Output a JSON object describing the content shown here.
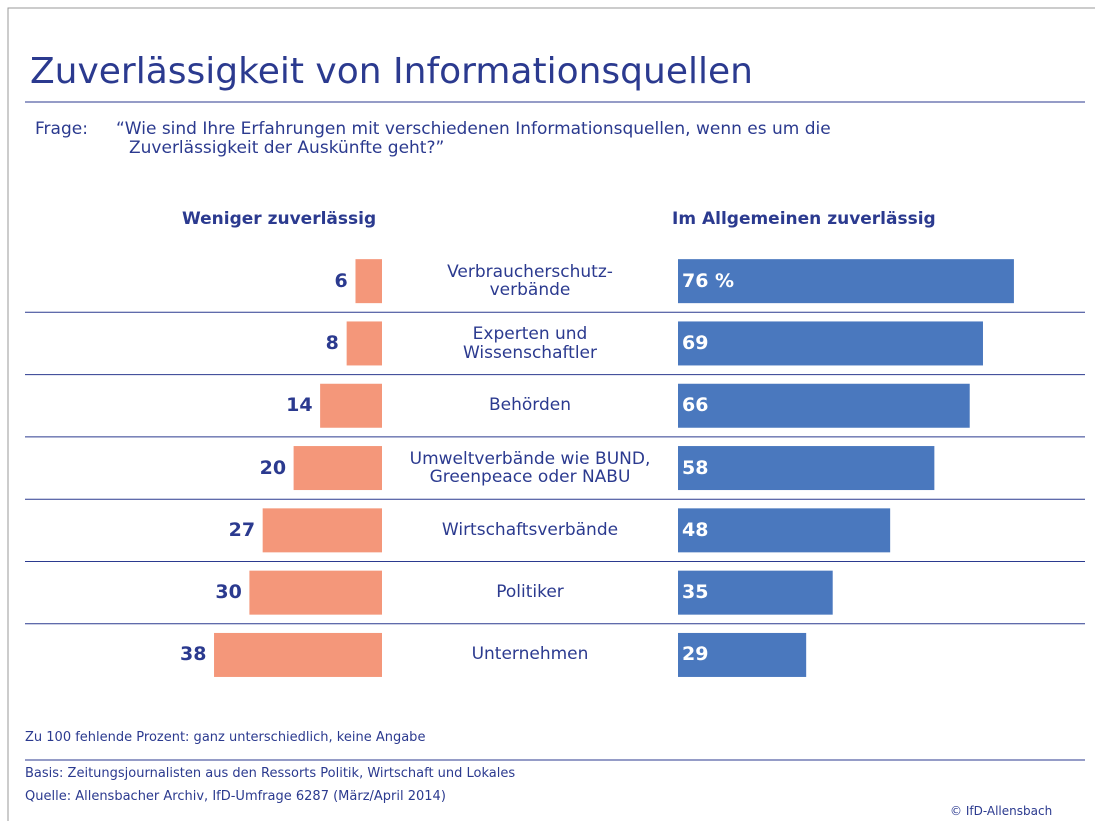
{
  "chart_data": {
    "type": "diverging_bar",
    "title": "Zuverlässigkeit von Informationsquellen",
    "question_label": "Frage:",
    "question": [
      "“Wie sind Ihre Erfahrungen mit verschiedenen Informationsquellen, wenn es um die",
      "Zuverlässigkeit der Auskünfte geht?”"
    ],
    "categories": [
      "Verbraucherschutz-\nverbände",
      "Experten und\nWissenschaftler",
      "Behörden",
      "Umweltverbände wie BUND,\nGreenpeace oder NABU",
      "Wirtschaftsverbände",
      "Politiker",
      "Unternehmen"
    ],
    "series": [
      {
        "name": "Weniger zuverlässig",
        "color": "#f4977a",
        "side": "left",
        "values": [
          6,
          8,
          14,
          20,
          27,
          30,
          38
        ]
      },
      {
        "name": "Im Allgemeinen zuverlässig",
        "color": "#4a78be",
        "side": "right",
        "values": [
          76,
          69,
          66,
          58,
          48,
          35,
          29
        ],
        "value_labels": [
          "76 %",
          "69",
          "66",
          "58",
          "48",
          "35",
          "29"
        ]
      }
    ],
    "note": "Zu 100 fehlende Prozent: ganz unterschiedlich, keine Angabe",
    "basis": "Basis: Zeitungsjournalisten aus den Ressorts Politik, Wirtschaft und Lokales",
    "source": "Quelle: Allensbacher Archiv, IfD-Umfrage 6287 (März/April 2014)",
    "copyright": "© IfD-Allensbach"
  }
}
